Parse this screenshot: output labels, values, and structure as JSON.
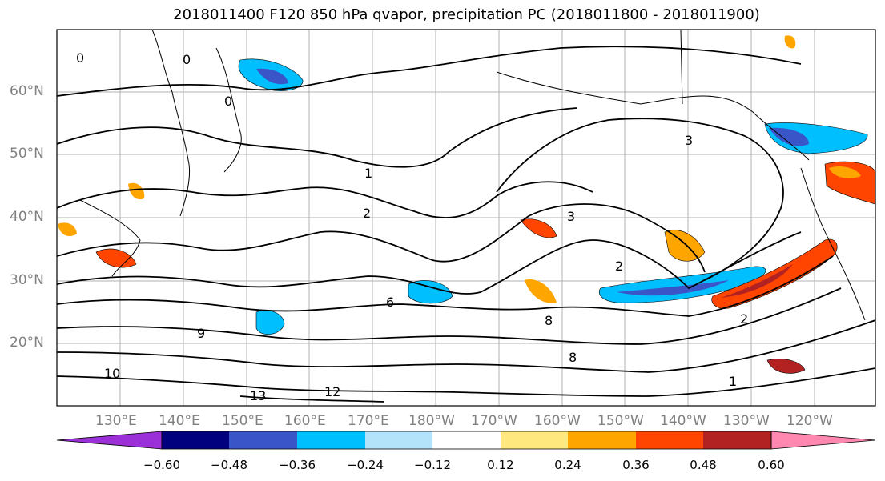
{
  "title": "2018011400 F120 850 hPa qvapor, precipitation PC (2018011800 - 2018011900)",
  "lat_labels": [
    "60°N",
    "50°N",
    "40°N",
    "30°N",
    "20°N"
  ],
  "lon_labels": [
    "130°E",
    "140°E",
    "150°E",
    "160°E",
    "170°E",
    "180°W",
    "170°W",
    "160°W",
    "150°W",
    "140°W",
    "130°W",
    "120°W"
  ],
  "colorbar": {
    "ticks": [
      "−0.60",
      "−0.48",
      "−0.36",
      "−0.24",
      "−0.12",
      "0.12",
      "0.24",
      "0.36",
      "0.48",
      "0.60"
    ],
    "colors": [
      "#9b30d9",
      "#00007f",
      "#3a55c8",
      "#00bfff",
      "#b3e3fb",
      "#ffffff",
      "#ffe97f",
      "#ffa500",
      "#ff4500",
      "#b22222",
      "#ff88b0"
    ]
  },
  "contour_labels": [
    "0",
    "0",
    "0",
    "1",
    "2",
    "3",
    "3",
    "2",
    "6",
    "8",
    "9",
    "10",
    "12",
    "13",
    "8",
    "2",
    "1"
  ],
  "colors": {
    "land": "#ffffff",
    "grid": "#b0b0b0",
    "coast": "#000000",
    "tick_text": "#808080"
  }
}
